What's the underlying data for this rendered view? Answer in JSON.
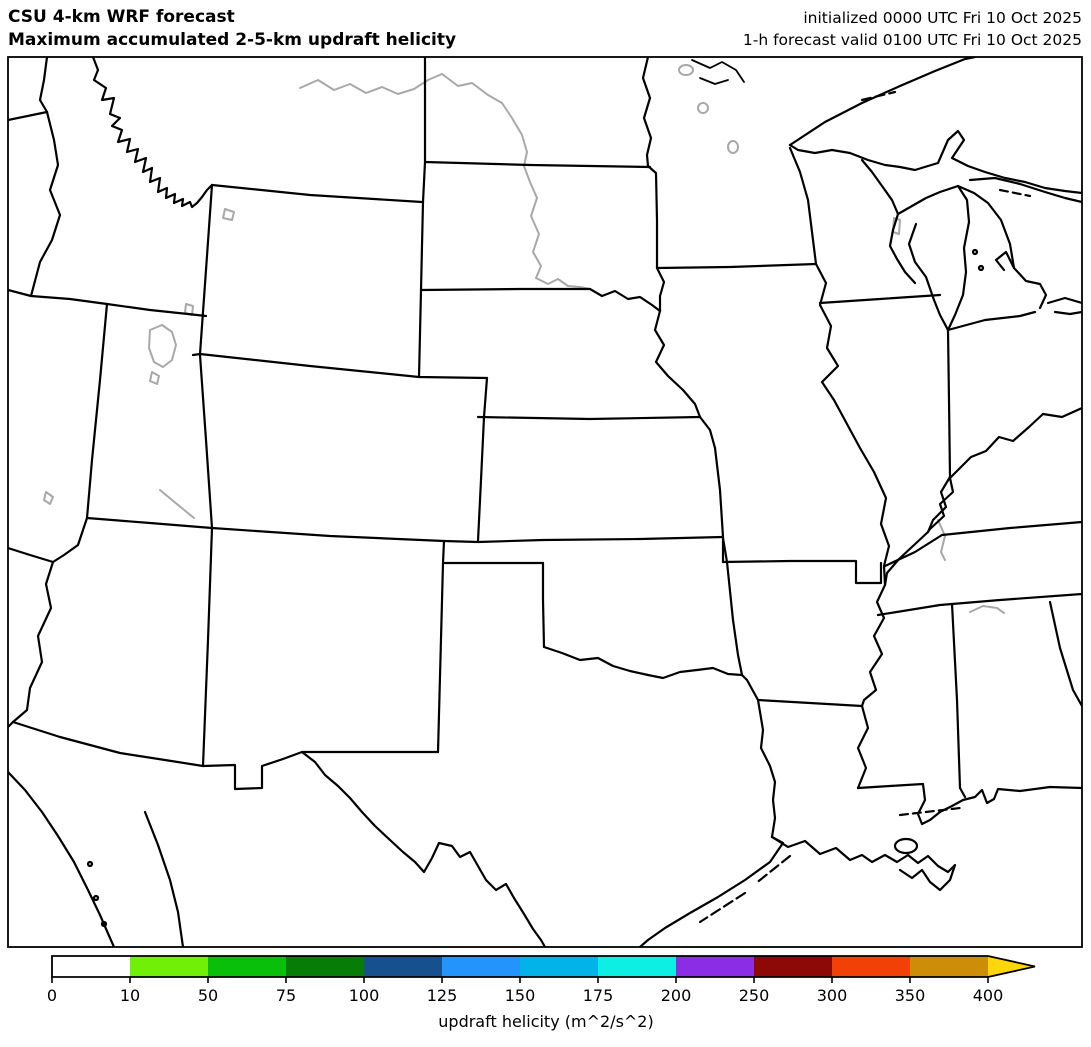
{
  "header": {
    "title_line1": "CSU 4-km WRF forecast",
    "title_line2": "Maximum accumulated 2-5-km updraft helicity",
    "init_line": "initialized 0000 UTC Fri 10 Oct 2025",
    "valid_line": "1-h forecast valid 0100 UTC Fri 10 Oct 2025"
  },
  "colorbar": {
    "label": "updraft helicity (m^2/s^2)",
    "tick_labels": [
      "0",
      "10",
      "50",
      "75",
      "100",
      "125",
      "150",
      "175",
      "200",
      "250",
      "300",
      "350",
      "400"
    ],
    "levels": [
      0,
      10,
      50,
      75,
      100,
      125,
      150,
      175,
      200,
      250,
      300,
      350,
      400
    ],
    "segment_colors": [
      "#ffffff",
      "#72ef07",
      "#0abf0a",
      "#077d07",
      "#17508f",
      "#2394fc",
      "#02b3ea",
      "#0cefe2",
      "#8b2de5",
      "#8c0907",
      "#f14106",
      "#cd8d09"
    ],
    "extend_color": "#fdd70c",
    "outline_color": "#000000"
  },
  "map": {
    "border_color": "#000000",
    "water_line_color": "#a8a8a8",
    "background_color": "#ffffff"
  },
  "chart_data": {
    "type": "heatmap",
    "title": "Maximum accumulated 2-5-km updraft helicity",
    "legend_label": "updraft helicity (m^2/s^2)",
    "levels": [
      0,
      10,
      50,
      75,
      100,
      125,
      150,
      175,
      200,
      250,
      300,
      350,
      400
    ],
    "values_shown_on_map": []
  }
}
